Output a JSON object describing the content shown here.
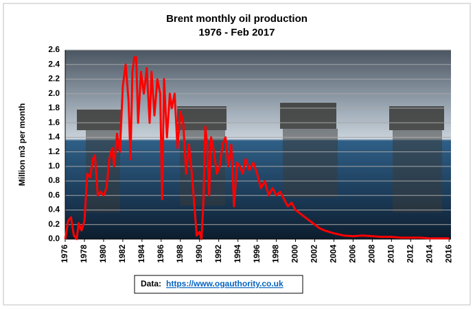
{
  "chart_data": {
    "type": "line",
    "title": "Brent monthly oil production",
    "subtitle": "1976 - Feb 2017",
    "y_label": "Million m3 per month",
    "source_label": "Data:",
    "source_link": "https://www.ogauthority.co.uk",
    "xlim": [
      1976,
      2016.2
    ],
    "xticks": [
      1976,
      1978,
      1980,
      1982,
      1984,
      1986,
      1988,
      1990,
      1992,
      1994,
      1996,
      1998,
      2000,
      2002,
      2004,
      2006,
      2008,
      2010,
      2012,
      2014,
      2016
    ],
    "ylim": [
      0,
      2.6
    ],
    "yticks": [
      {
        "value": 0,
        "label": "0.0"
      },
      0.2,
      0.4,
      0.6,
      0.8,
      {
        "value": 1,
        "label": "1.0"
      },
      1.2,
      1.4,
      1.6,
      1.8,
      {
        "value": 2,
        "label": "2.0"
      },
      2.2,
      2.4,
      2.6
    ],
    "grid": true,
    "series": [
      {
        "name": "Brent",
        "color": "#ff0000",
        "x": [
          1976.0,
          1976.3,
          1976.6,
          1976.9,
          1977.2,
          1977.4,
          1977.7,
          1978.0,
          1978.3,
          1978.6,
          1978.9,
          1979.1,
          1979.4,
          1979.7,
          1980.0,
          1980.3,
          1980.6,
          1980.9,
          1981.1,
          1981.4,
          1981.7,
          1982.0,
          1982.3,
          1982.6,
          1982.8,
          1983.0,
          1983.2,
          1983.4,
          1983.6,
          1983.9,
          1984.2,
          1984.5,
          1984.8,
          1985.0,
          1985.3,
          1985.6,
          1985.9,
          1986.1,
          1986.3,
          1986.6,
          1986.9,
          1987.1,
          1987.4,
          1987.7,
          1988.0,
          1988.3,
          1988.6,
          1988.9,
          1989.2,
          1989.5,
          1989.7,
          1990.0,
          1990.2,
          1990.4,
          1990.6,
          1990.8,
          1991.0,
          1991.2,
          1991.5,
          1991.8,
          1992.1,
          1992.4,
          1992.7,
          1993.0,
          1993.3,
          1993.6,
          1993.9,
          1994.2,
          1994.5,
          1994.8,
          1995.2,
          1995.6,
          1996.0,
          1996.4,
          1996.8,
          1997.2,
          1997.6,
          1998.0,
          1998.4,
          1998.8,
          1999.2,
          1999.6,
          2000.0,
          2000.5,
          2001.0,
          2001.5,
          2002.0,
          2002.5,
          2003.0,
          2003.5,
          2004.0,
          2005.0,
          2006.0,
          2007.0,
          2008.0,
          2009.0,
          2010.0,
          2011.0,
          2012.0,
          2013.0,
          2014.0,
          2015.0,
          2016.0
        ],
        "values": [
          0,
          0.25,
          0.3,
          0.05,
          0,
          0.22,
          0.12,
          0.25,
          0.9,
          0.85,
          1.1,
          1.15,
          0.6,
          0.65,
          0.6,
          0.7,
          1.1,
          1.25,
          1.0,
          1.45,
          1.2,
          2.1,
          2.4,
          1.9,
          1.1,
          2.3,
          2.5,
          2.5,
          1.6,
          2.3,
          2.0,
          2.35,
          1.6,
          2.3,
          1.7,
          2.2,
          2.0,
          0.55,
          2.2,
          1.4,
          2.0,
          1.8,
          2.0,
          1.25,
          1.75,
          1.6,
          0.9,
          1.3,
          0.9,
          0.4,
          0.05,
          0.1,
          0,
          0.5,
          1.55,
          1.3,
          0.6,
          1.4,
          1.2,
          0.9,
          1.0,
          1.3,
          1.4,
          1.0,
          1.3,
          0.45,
          1.05,
          1.0,
          0.9,
          1.1,
          0.95,
          1.05,
          0.9,
          0.7,
          0.8,
          0.6,
          0.7,
          0.6,
          0.65,
          0.55,
          0.45,
          0.5,
          0.4,
          0.35,
          0.3,
          0.25,
          0.2,
          0.15,
          0.12,
          0.1,
          0.08,
          0.05,
          0.04,
          0.05,
          0.04,
          0.03,
          0.03,
          0.02,
          0.02,
          0.02,
          0.01,
          0.01,
          0.01
        ]
      }
    ]
  }
}
